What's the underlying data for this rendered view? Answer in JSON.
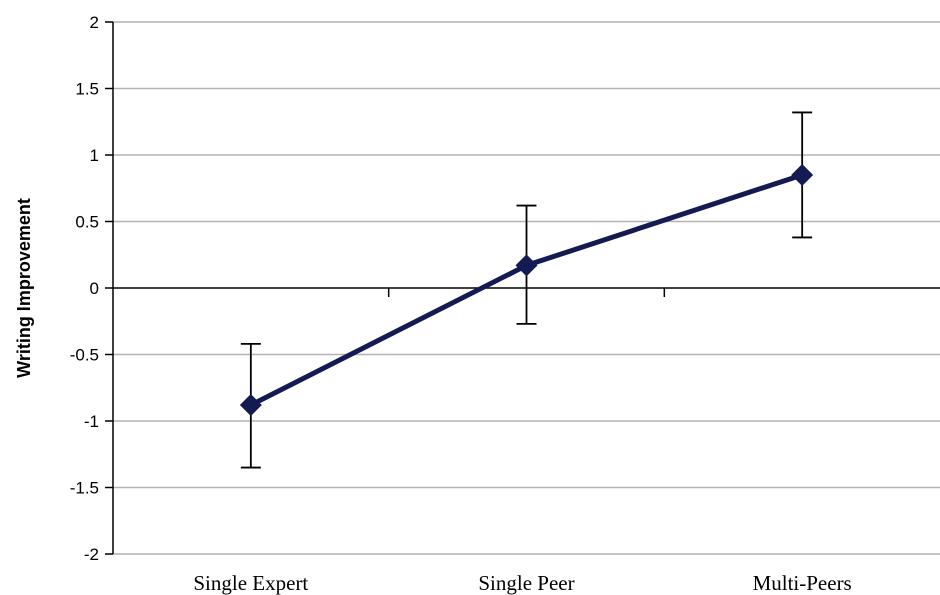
{
  "chart_data": {
    "type": "line",
    "title": "",
    "xlabel": "",
    "ylabel": "Writing Improvement",
    "categories": [
      "Single Expert",
      "Single Peer",
      "Multi-Peers"
    ],
    "series": [
      {
        "values": [
          -0.88,
          0.17,
          0.85
        ],
        "error_low": [
          -1.35,
          -0.27,
          0.38
        ],
        "error_high": [
          -0.42,
          0.62,
          1.32
        ],
        "color": "#141a52",
        "marker": "diamond"
      }
    ],
    "ylim": [
      -2,
      2
    ],
    "yticks": [
      "2",
      "1.5",
      "1",
      "0.5",
      "0",
      "-0.5",
      "-1",
      "-1.5",
      "-2"
    ],
    "grid": true,
    "legend": "none"
  }
}
